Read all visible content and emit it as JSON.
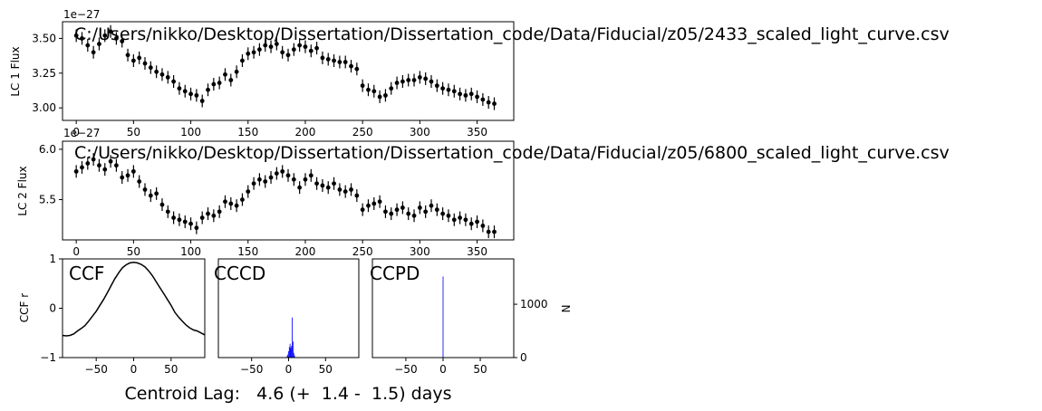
{
  "chart_data": [
    {
      "type": "scatter",
      "id": "lc1",
      "title": "C:/Users/nikko/Desktop/Dissertation/Dissertation_code/Data/Fiducial/z05/2433_scaled_light_curve.csv",
      "ylabel": "LC 1 Flux",
      "offset_text": "1e−27",
      "xlim": [
        -12,
        382
      ],
      "ylim": [
        2.91,
        3.62
      ],
      "xticks": [
        "0",
        "50",
        "100",
        "150",
        "200",
        "250",
        "300",
        "350"
      ],
      "yticks": [
        "3.00",
        "3.25",
        "3.50"
      ],
      "error_bars": true,
      "x": [
        0,
        5,
        10,
        15,
        20,
        25,
        30,
        35,
        40,
        45,
        50,
        55,
        60,
        65,
        70,
        75,
        80,
        85,
        90,
        95,
        100,
        105,
        110,
        115,
        120,
        125,
        130,
        135,
        140,
        145,
        150,
        155,
        160,
        165,
        170,
        175,
        180,
        185,
        190,
        195,
        200,
        205,
        210,
        215,
        220,
        225,
        230,
        235,
        240,
        245,
        250,
        255,
        260,
        265,
        270,
        275,
        280,
        285,
        290,
        295,
        300,
        305,
        310,
        315,
        320,
        325,
        330,
        335,
        340,
        345,
        350,
        355,
        360,
        365
      ],
      "y": [
        3.52,
        3.5,
        3.45,
        3.4,
        3.46,
        3.52,
        3.55,
        3.5,
        3.48,
        3.38,
        3.34,
        3.36,
        3.32,
        3.29,
        3.26,
        3.24,
        3.22,
        3.19,
        3.14,
        3.12,
        3.1,
        3.09,
        3.05,
        3.13,
        3.17,
        3.18,
        3.24,
        3.2,
        3.26,
        3.34,
        3.39,
        3.4,
        3.42,
        3.45,
        3.44,
        3.46,
        3.4,
        3.38,
        3.42,
        3.45,
        3.44,
        3.41,
        3.43,
        3.36,
        3.35,
        3.34,
        3.33,
        3.33,
        3.3,
        3.28,
        3.16,
        3.13,
        3.12,
        3.08,
        3.09,
        3.14,
        3.18,
        3.19,
        3.2,
        3.2,
        3.22,
        3.21,
        3.19,
        3.16,
        3.14,
        3.13,
        3.12,
        3.1,
        3.09,
        3.1,
        3.08,
        3.06,
        3.04,
        3.03
      ]
    },
    {
      "type": "scatter",
      "id": "lc2",
      "title": "C:/Users/nikko/Desktop/Dissertation/Dissertation_code/Data/Fiducial/z05/6800_scaled_light_curve.csv",
      "ylabel": "LC 2 Flux",
      "offset_text": "1e−27",
      "xlim": [
        -12,
        382
      ],
      "ylim": [
        5.1,
        6.08
      ],
      "xticks": [
        "0",
        "50",
        "100",
        "150",
        "200",
        "250",
        "300",
        "350"
      ],
      "yticks": [
        "5.5",
        "6.0"
      ],
      "error_bars": true,
      "x": [
        0,
        5,
        10,
        15,
        20,
        25,
        30,
        35,
        40,
        45,
        50,
        55,
        60,
        65,
        70,
        75,
        80,
        85,
        90,
        95,
        100,
        105,
        110,
        115,
        120,
        125,
        130,
        135,
        140,
        145,
        150,
        155,
        160,
        165,
        170,
        175,
        180,
        185,
        190,
        195,
        200,
        205,
        210,
        215,
        220,
        225,
        230,
        235,
        240,
        245,
        250,
        255,
        260,
        265,
        270,
        275,
        280,
        285,
        290,
        295,
        300,
        305,
        310,
        315,
        320,
        325,
        330,
        335,
        340,
        345,
        350,
        355,
        360,
        365
      ],
      "y": [
        5.78,
        5.82,
        5.86,
        5.9,
        5.84,
        5.8,
        5.88,
        5.84,
        5.72,
        5.74,
        5.78,
        5.68,
        5.6,
        5.54,
        5.56,
        5.45,
        5.38,
        5.32,
        5.3,
        5.28,
        5.26,
        5.22,
        5.32,
        5.36,
        5.34,
        5.38,
        5.48,
        5.46,
        5.44,
        5.5,
        5.58,
        5.66,
        5.7,
        5.68,
        5.72,
        5.76,
        5.78,
        5.74,
        5.7,
        5.62,
        5.7,
        5.74,
        5.66,
        5.64,
        5.62,
        5.66,
        5.6,
        5.58,
        5.6,
        5.54,
        5.4,
        5.44,
        5.46,
        5.48,
        5.38,
        5.36,
        5.4,
        5.42,
        5.36,
        5.34,
        5.42,
        5.38,
        5.44,
        5.4,
        5.36,
        5.34,
        5.3,
        5.32,
        5.3,
        5.26,
        5.28,
        5.24,
        5.18,
        5.18
      ]
    },
    {
      "type": "line",
      "id": "ccf",
      "title": "CCF",
      "ylabel": "CCF r",
      "xlim": [
        -95,
        95
      ],
      "ylim": [
        -1,
        1
      ],
      "xticks": [
        "−50",
        "0",
        "50"
      ],
      "yticks": [
        "−1",
        "0",
        "1"
      ],
      "x": [
        -95,
        -90,
        -85,
        -80,
        -75,
        -70,
        -65,
        -60,
        -55,
        -50,
        -45,
        -40,
        -35,
        -30,
        -25,
        -20,
        -15,
        -10,
        -5,
        0,
        5,
        10,
        15,
        20,
        25,
        30,
        35,
        40,
        45,
        50,
        55,
        60,
        65,
        70,
        75,
        80,
        85,
        90,
        95
      ],
      "y": [
        -0.55,
        -0.56,
        -0.55,
        -0.52,
        -0.46,
        -0.41,
        -0.35,
        -0.26,
        -0.16,
        -0.06,
        0.06,
        0.18,
        0.32,
        0.46,
        0.6,
        0.72,
        0.82,
        0.88,
        0.92,
        0.93,
        0.92,
        0.89,
        0.84,
        0.76,
        0.66,
        0.54,
        0.42,
        0.3,
        0.18,
        0.06,
        -0.08,
        -0.18,
        -0.26,
        -0.34,
        -0.4,
        -0.44,
        -0.46,
        -0.5,
        -0.54
      ]
    },
    {
      "type": "bar",
      "id": "cccd",
      "title": "CCCD",
      "color": "#0000ff",
      "xlim": [
        -95,
        95
      ],
      "ymax": 1850,
      "xticks": [
        "−50",
        "0",
        "50"
      ],
      "x": [
        -2,
        -1,
        0,
        1,
        2,
        3,
        4,
        5,
        6,
        7,
        8
      ],
      "values": [
        30,
        60,
        120,
        200,
        260,
        180,
        220,
        750,
        300,
        90,
        40
      ]
    },
    {
      "type": "bar",
      "id": "ccpd",
      "title": "CCPD",
      "color": "#0000ff",
      "ylabel": "N",
      "xlim": [
        -95,
        95
      ],
      "ylim": [
        0,
        1850
      ],
      "xticks": [
        "−50",
        "0",
        "50"
      ],
      "yticks": [
        "0",
        "1000"
      ],
      "x": [
        0
      ],
      "values": [
        1520
      ]
    }
  ],
  "footer": {
    "text": "Centroid Lag:   4.6 (+  1.4 -  1.5) days"
  }
}
